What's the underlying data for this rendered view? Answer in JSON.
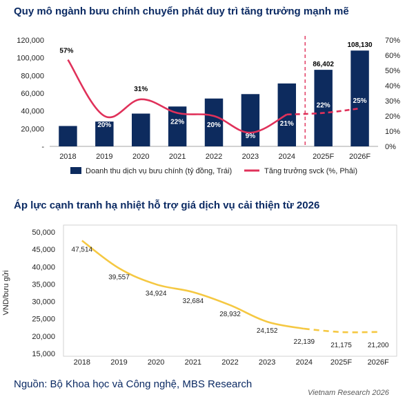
{
  "titles": {
    "chart1": "Quy mô ngành bưu chính chuyển phát duy trì tăng trưởng mạnh mẽ",
    "chart2": "Áp lực cạnh tranh hạ nhiệt hỗ trợ giá dịch vụ cải thiện từ 2026"
  },
  "source": "Nguồn: Bộ Khoa học và Công nghệ, MBS Research",
  "watermark": "Vietnam Research  2026",
  "colors": {
    "bar": "#0d2b5e",
    "growth_line": "#e0315a",
    "price_line": "#f5c842",
    "title": "#0b2a63",
    "forecast_divider": "#e0315a"
  },
  "chart_data": [
    {
      "type": "bar",
      "title": "Quy mô ngành bưu chính chuyển phát duy trì tăng trưởng mạnh mẽ",
      "categories": [
        "2018",
        "2019",
        "2020",
        "2021",
        "2022",
        "2023",
        "2024",
        "2025F",
        "2026F"
      ],
      "series": [
        {
          "name": "Doanh thu dịch vụ bưu chính (tỷ đồng, Trái)",
          "kind": "bar",
          "axis": "left",
          "values": [
            23000,
            28000,
            37000,
            45000,
            54000,
            59000,
            71000,
            86402,
            108130
          ],
          "data_labels": [
            "",
            "",
            "",
            "",
            "",
            "",
            "",
            "86,402",
            "108,130"
          ]
        },
        {
          "name": "Tăng trưởng svck (%, Phải)",
          "kind": "line",
          "axis": "right",
          "values": [
            57,
            20,
            31,
            22,
            20,
            9,
            21,
            22,
            25
          ],
          "data_labels": [
            "57%",
            "20%",
            "31%",
            "22%",
            "20%",
            "9%",
            "21%",
            "22%",
            "25%"
          ],
          "forecast_from_index": 6
        }
      ],
      "y_left": {
        "ticks": [
          "-",
          "20,000",
          "40,000",
          "60,000",
          "80,000",
          "100,000",
          "120,000"
        ],
        "ylim": [
          0,
          120000
        ]
      },
      "y_right": {
        "ticks": [
          "0%",
          "10%",
          "20%",
          "30%",
          "40%",
          "50%",
          "60%",
          "70%"
        ],
        "ylim": [
          0,
          70
        ]
      },
      "forecast_divider_after": "2024",
      "legend_position": "bottom"
    },
    {
      "type": "line",
      "title": "Áp lực cạnh tranh hạ nhiệt hỗ trợ giá dịch vụ cải thiện từ 2026",
      "categories": [
        "2018",
        "2019",
        "2020",
        "2021",
        "2022",
        "2023",
        "2024",
        "2025F",
        "2026F"
      ],
      "series": [
        {
          "values": [
            47514,
            39557,
            34924,
            32684,
            28932,
            24152,
            22139,
            21175,
            21200
          ],
          "data_labels": [
            "47,514",
            "39,557",
            "34,924",
            "32,684",
            "28,932",
            "24,152",
            "22,139",
            "21,175",
            "21,200"
          ],
          "forecast_from_index": 6
        }
      ],
      "ylabel": "VND/bưu gửi",
      "y_ticks": [
        "15,000",
        "20,000",
        "25,000",
        "30,000",
        "35,000",
        "40,000",
        "45,000",
        "50,000"
      ],
      "ylim": [
        15000,
        50000
      ],
      "grid": false
    }
  ]
}
